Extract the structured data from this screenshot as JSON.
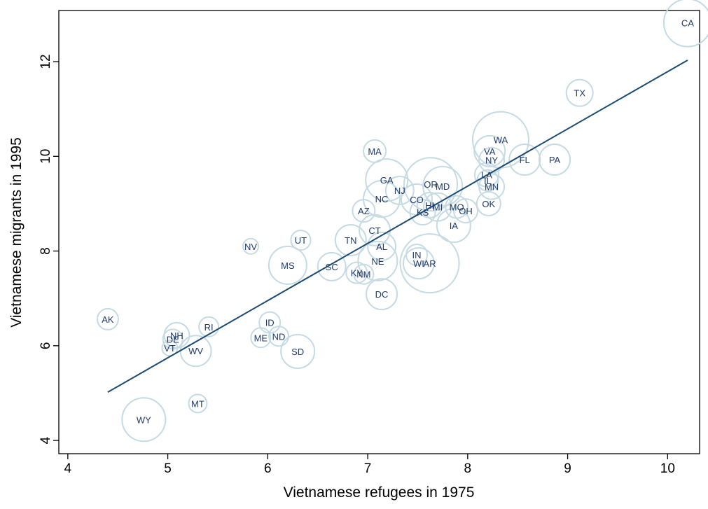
{
  "chart_data": {
    "type": "scatter",
    "xlabel": "Vietnamese refugees in 1975",
    "ylabel": "Vietnamese migrants in 1995",
    "labels": [
      "CA",
      "TX",
      "WA",
      "VA",
      "NY",
      "FL",
      "PA",
      "LA",
      "IL",
      "MN",
      "OK",
      "MD",
      "OR",
      "MO",
      "OH",
      "HI",
      "MI",
      "KS",
      "CO",
      "IA",
      "MA",
      "GA",
      "NJ",
      "NC",
      "AZ",
      "CT",
      "TN",
      "AL",
      "NE",
      "IN",
      "WI",
      "AR",
      "SC",
      "KY",
      "NM",
      "DC",
      "MS",
      "UT",
      "NV",
      "AK",
      "NH",
      "DE",
      "VT",
      "RI",
      "WV",
      "ID",
      "ME",
      "ND",
      "SD",
      "MT",
      "WY"
    ],
    "x": [
      10.2,
      9.12,
      8.33,
      8.22,
      8.24,
      8.57,
      8.87,
      8.19,
      8.2,
      8.24,
      8.21,
      7.75,
      7.63,
      7.89,
      7.98,
      7.62,
      7.7,
      7.55,
      7.49,
      7.86,
      7.07,
      7.19,
      7.32,
      7.14,
      6.96,
      7.07,
      6.83,
      7.14,
      7.1,
      7.49,
      7.51,
      7.62,
      6.64,
      6.89,
      6.96,
      7.14,
      6.2,
      6.33,
      5.83,
      4.4,
      5.09,
      5.05,
      5.02,
      5.41,
      5.28,
      6.02,
      5.93,
      6.11,
      6.3,
      5.3,
      4.76
    ],
    "y": [
      12.82,
      11.34,
      10.35,
      10.11,
      9.92,
      9.93,
      9.93,
      9.61,
      9.49,
      9.36,
      9.0,
      9.37,
      9.41,
      8.93,
      8.85,
      8.97,
      8.93,
      8.82,
      9.09,
      8.54,
      10.11,
      9.5,
      9.28,
      9.1,
      8.85,
      8.44,
      8.23,
      8.1,
      7.79,
      7.92,
      7.74,
      7.74,
      7.67,
      7.54,
      7.51,
      7.09,
      7.7,
      8.23,
      8.1,
      6.56,
      6.22,
      6.14,
      5.95,
      6.4,
      5.89,
      6.49,
      6.17,
      6.2,
      5.88,
      4.78,
      4.44
    ],
    "sizes": [
      34,
      19,
      40,
      22,
      18,
      22,
      22,
      17,
      15,
      18,
      17,
      28,
      38,
      16,
      17,
      18,
      20,
      18,
      22,
      24,
      16,
      30,
      20,
      26,
      16,
      22,
      22,
      20,
      28,
      15,
      22,
      42,
      20,
      15,
      14,
      22,
      27,
      14,
      11,
      15,
      18,
      14,
      11,
      14,
      22,
      15,
      14,
      14,
      24,
      13,
      31
    ],
    "color": "#c5dae3",
    "label_color": "#1f3a6a",
    "fit": {
      "x": [
        4.4,
        10.2
      ],
      "y": [
        5.02,
        12.03
      ],
      "color": "#1b4a72"
    },
    "xlim": [
      3.91,
      10.32
    ],
    "ylim": [
      3.72,
      13.08
    ],
    "xticks": [
      4,
      5,
      6,
      7,
      8,
      9,
      10
    ],
    "yticks": [
      4,
      6,
      8,
      10,
      12
    ]
  }
}
